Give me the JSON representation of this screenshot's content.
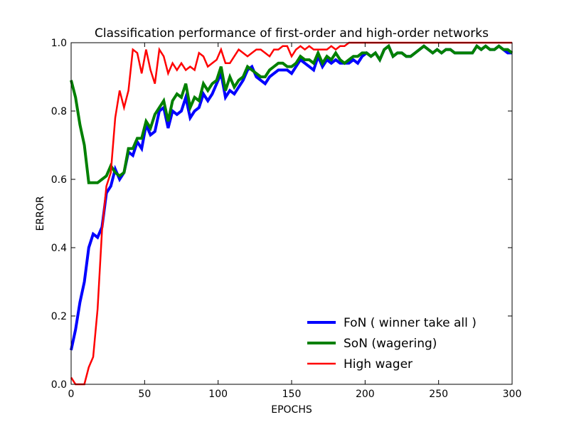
{
  "chart_data": {
    "type": "line",
    "title": "Classification performance of first-order and high-order networks",
    "xlabel": "EPOCHS",
    "ylabel": "ERROR",
    "xlim": [
      0,
      300
    ],
    "ylim": [
      0.0,
      1.0
    ],
    "xticks": [
      0,
      50,
      100,
      150,
      200,
      250,
      300
    ],
    "xtick_labels": [
      "0",
      "50",
      "100",
      "150",
      "200",
      "250",
      "300"
    ],
    "yticks": [
      0.0,
      0.2,
      0.4,
      0.6,
      0.8,
      1.0
    ],
    "ytick_labels": [
      "0.0",
      "0.2",
      "0.4",
      "0.6",
      "0.8",
      "1.0"
    ],
    "grid": false,
    "legend_position": "lower-right",
    "series": [
      {
        "name": "FoN ( winner take all )",
        "color": "#0000ff",
        "x": [
          0,
          3,
          6,
          9,
          12,
          15,
          18,
          21,
          24,
          27,
          30,
          33,
          36,
          39,
          42,
          45,
          48,
          51,
          54,
          57,
          60,
          63,
          66,
          69,
          72,
          75,
          78,
          81,
          84,
          87,
          90,
          93,
          96,
          99,
          102,
          105,
          108,
          111,
          114,
          117,
          120,
          123,
          126,
          129,
          132,
          135,
          138,
          141,
          144,
          147,
          150,
          153,
          156,
          159,
          162,
          165,
          168,
          171,
          174,
          177,
          180,
          183,
          186,
          189,
          192,
          195,
          198,
          201,
          204,
          207,
          210,
          213,
          216,
          219,
          222,
          225,
          228,
          231,
          234,
          237,
          240,
          243,
          246,
          249,
          252,
          255,
          258,
          261,
          264,
          267,
          270,
          273,
          276,
          279,
          282,
          285,
          288,
          291,
          294,
          297,
          300
        ],
        "values": [
          0.1,
          0.16,
          0.24,
          0.3,
          0.4,
          0.44,
          0.43,
          0.46,
          0.56,
          0.58,
          0.63,
          0.6,
          0.62,
          0.68,
          0.67,
          0.71,
          0.69,
          0.76,
          0.73,
          0.74,
          0.8,
          0.81,
          0.75,
          0.8,
          0.79,
          0.8,
          0.84,
          0.78,
          0.8,
          0.81,
          0.85,
          0.83,
          0.85,
          0.88,
          0.91,
          0.84,
          0.86,
          0.85,
          0.87,
          0.89,
          0.92,
          0.93,
          0.9,
          0.89,
          0.88,
          0.9,
          0.91,
          0.92,
          0.92,
          0.92,
          0.91,
          0.93,
          0.95,
          0.94,
          0.93,
          0.92,
          0.96,
          0.93,
          0.95,
          0.94,
          0.95,
          0.94,
          0.94,
          0.94,
          0.95,
          0.94,
          0.96,
          0.97,
          0.96,
          0.97,
          0.95,
          0.98,
          0.99,
          0.96,
          0.97,
          0.97,
          0.96,
          0.96,
          0.97,
          0.98,
          0.99,
          0.98,
          0.97,
          0.98,
          0.97,
          0.98,
          0.98,
          0.97,
          0.97,
          0.97,
          0.97,
          0.97,
          0.99,
          0.98,
          0.99,
          0.98,
          0.98,
          0.99,
          0.98,
          0.97,
          0.97
        ]
      },
      {
        "name": "SoN (wagering)",
        "color": "#008000",
        "x": [
          0,
          3,
          6,
          9,
          12,
          15,
          18,
          21,
          24,
          27,
          30,
          33,
          36,
          39,
          42,
          45,
          48,
          51,
          54,
          57,
          60,
          63,
          66,
          69,
          72,
          75,
          78,
          81,
          84,
          87,
          90,
          93,
          96,
          99,
          102,
          105,
          108,
          111,
          114,
          117,
          120,
          123,
          126,
          129,
          132,
          135,
          138,
          141,
          144,
          147,
          150,
          153,
          156,
          159,
          162,
          165,
          168,
          171,
          174,
          177,
          180,
          183,
          186,
          189,
          192,
          195,
          198,
          201,
          204,
          207,
          210,
          213,
          216,
          219,
          222,
          225,
          228,
          231,
          234,
          237,
          240,
          243,
          246,
          249,
          252,
          255,
          258,
          261,
          264,
          267,
          270,
          273,
          276,
          279,
          282,
          285,
          288,
          291,
          294,
          297,
          300
        ],
        "values": [
          0.89,
          0.84,
          0.76,
          0.7,
          0.59,
          0.59,
          0.59,
          0.6,
          0.61,
          0.64,
          0.62,
          0.61,
          0.62,
          0.69,
          0.69,
          0.72,
          0.72,
          0.77,
          0.75,
          0.79,
          0.81,
          0.83,
          0.77,
          0.83,
          0.85,
          0.84,
          0.88,
          0.81,
          0.84,
          0.83,
          0.88,
          0.86,
          0.88,
          0.89,
          0.93,
          0.86,
          0.9,
          0.87,
          0.89,
          0.9,
          0.93,
          0.92,
          0.91,
          0.9,
          0.9,
          0.92,
          0.93,
          0.94,
          0.94,
          0.93,
          0.93,
          0.94,
          0.96,
          0.95,
          0.95,
          0.94,
          0.97,
          0.94,
          0.96,
          0.95,
          0.97,
          0.95,
          0.94,
          0.95,
          0.96,
          0.96,
          0.97,
          0.97,
          0.96,
          0.97,
          0.95,
          0.98,
          0.99,
          0.96,
          0.97,
          0.97,
          0.96,
          0.96,
          0.97,
          0.98,
          0.99,
          0.98,
          0.97,
          0.98,
          0.97,
          0.98,
          0.98,
          0.97,
          0.97,
          0.97,
          0.97,
          0.97,
          0.99,
          0.98,
          0.99,
          0.98,
          0.98,
          0.99,
          0.98,
          0.98,
          0.97
        ]
      },
      {
        "name": "High wager",
        "color": "#ff0000",
        "x": [
          0,
          3,
          6,
          9,
          12,
          15,
          18,
          21,
          24,
          27,
          30,
          33,
          36,
          39,
          42,
          45,
          48,
          51,
          54,
          57,
          60,
          63,
          66,
          69,
          72,
          75,
          78,
          81,
          84,
          87,
          90,
          93,
          96,
          99,
          102,
          105,
          108,
          111,
          114,
          117,
          120,
          123,
          126,
          129,
          132,
          135,
          138,
          141,
          144,
          147,
          150,
          153,
          156,
          159,
          162,
          165,
          168,
          171,
          174,
          177,
          180,
          183,
          186,
          189,
          192,
          195,
          198,
          201,
          204,
          207,
          210,
          213,
          216,
          219,
          222,
          225,
          228,
          231,
          234,
          237,
          240,
          243,
          246,
          249,
          252,
          255,
          258,
          261,
          264,
          267,
          270,
          273,
          276,
          279,
          282,
          285,
          288,
          291,
          294,
          297,
          300
        ],
        "values": [
          0.02,
          0.0,
          0.0,
          0.0,
          0.05,
          0.08,
          0.22,
          0.45,
          0.58,
          0.62,
          0.78,
          0.86,
          0.81,
          0.86,
          0.98,
          0.97,
          0.91,
          0.98,
          0.92,
          0.88,
          0.98,
          0.96,
          0.91,
          0.94,
          0.92,
          0.94,
          0.92,
          0.93,
          0.92,
          0.97,
          0.96,
          0.93,
          0.94,
          0.95,
          0.98,
          0.94,
          0.94,
          0.96,
          0.98,
          0.97,
          0.96,
          0.97,
          0.98,
          0.98,
          0.97,
          0.96,
          0.98,
          0.98,
          0.99,
          0.99,
          0.96,
          0.98,
          0.99,
          0.98,
          0.99,
          0.98,
          0.98,
          0.98,
          0.98,
          0.99,
          0.98,
          0.99,
          0.99,
          1.0,
          1.0,
          1.0,
          1.0,
          1.0,
          1.0,
          1.0,
          1.0,
          1.0,
          1.0,
          1.0,
          1.0,
          1.0,
          1.0,
          1.0,
          1.0,
          1.0,
          1.0,
          1.0,
          1.0,
          1.0,
          1.0,
          1.0,
          1.0,
          1.0,
          1.0,
          1.0,
          1.0,
          1.0,
          1.0,
          1.0,
          1.0,
          1.0,
          1.0,
          1.0,
          1.0,
          1.0,
          1.0
        ]
      }
    ]
  }
}
